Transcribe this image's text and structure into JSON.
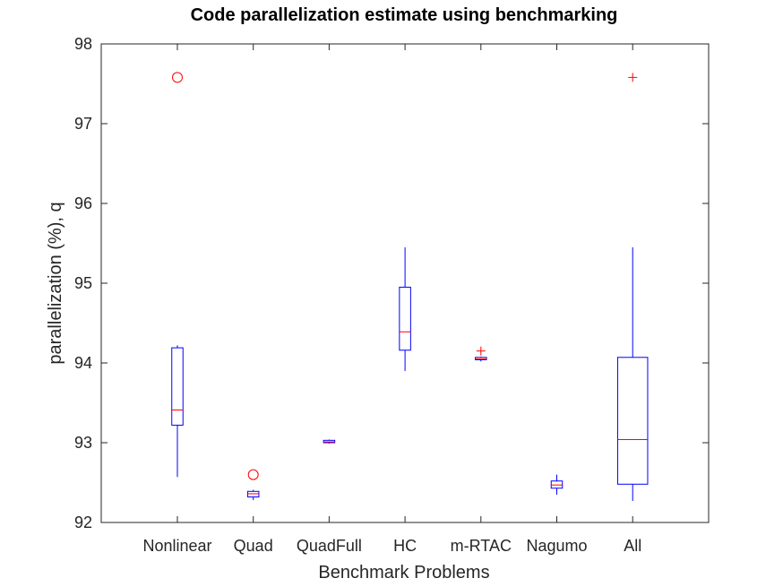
{
  "chart_data": {
    "type": "box",
    "title": "Code parallelization estimate using benchmarking",
    "xlabel": "Benchmark Problems",
    "ylabel": "parallelization (%), q",
    "ylim": [
      92,
      98
    ],
    "yticks": [
      92,
      93,
      94,
      95,
      96,
      97,
      98
    ],
    "categories": [
      "Nonlinear",
      "Quad",
      "QuadFull",
      "HC",
      "m-RTAC",
      "Nagumo",
      "All"
    ],
    "grid": false,
    "colors": {
      "box": "#0000ff",
      "median": "#ff0000",
      "outlier": "#ff0000",
      "frame": "#262626"
    },
    "boxes": [
      {
        "name": "Nonlinear",
        "whisker_low": 92.57,
        "q1": 93.22,
        "median": 93.41,
        "q3": 94.19,
        "whisker_high": 94.22,
        "outliers": [
          97.58
        ],
        "outlier_marker": "circle"
      },
      {
        "name": "Quad",
        "whisker_low": 92.28,
        "q1": 92.32,
        "median": 92.36,
        "q3": 92.39,
        "whisker_high": 92.41,
        "outliers": [
          92.6
        ],
        "outlier_marker": "circle"
      },
      {
        "name": "QuadFull",
        "whisker_low": 92.99,
        "q1": 93.0,
        "median": 93.01,
        "q3": 93.03,
        "whisker_high": 93.04,
        "outliers": [],
        "outlier_marker": "plus"
      },
      {
        "name": "HC",
        "whisker_low": 93.9,
        "q1": 94.16,
        "median": 94.39,
        "q3": 94.95,
        "whisker_high": 95.45,
        "outliers": [],
        "outlier_marker": "plus"
      },
      {
        "name": "m-RTAC",
        "whisker_low": 94.02,
        "q1": 94.04,
        "median": 94.05,
        "q3": 94.07,
        "whisker_high": 94.08,
        "outliers": [
          94.15
        ],
        "outlier_marker": "plus"
      },
      {
        "name": "Nagumo",
        "whisker_low": 92.35,
        "q1": 92.43,
        "median": 92.47,
        "q3": 92.52,
        "whisker_high": 92.6,
        "outliers": [],
        "outlier_marker": "plus"
      },
      {
        "name": "All",
        "whisker_low": 92.27,
        "q1": 92.48,
        "median": 93.04,
        "q3": 94.07,
        "whisker_high": 95.45,
        "outliers": [
          97.58
        ],
        "outlier_marker": "plus"
      }
    ]
  }
}
